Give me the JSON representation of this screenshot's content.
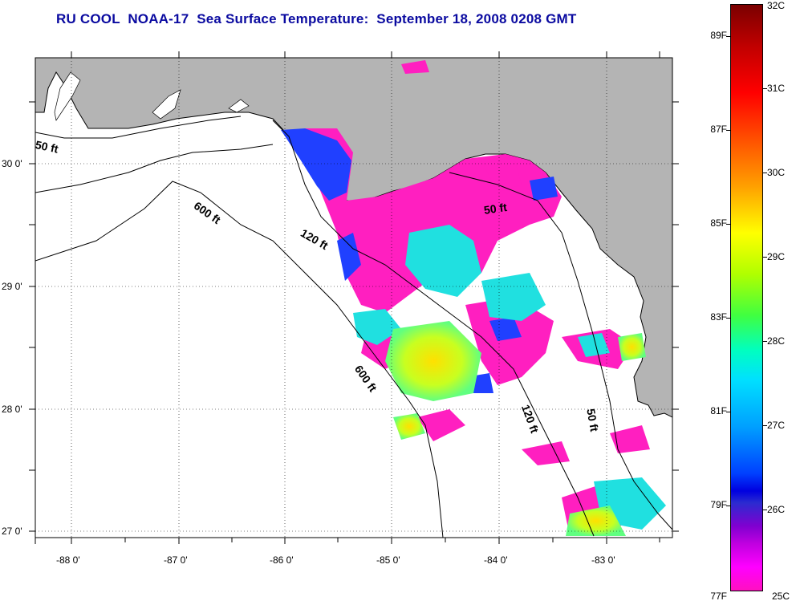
{
  "title": "RU COOL  NOAA-17  Sea Surface Temperature:  September 18, 2008 0208 GMT",
  "map": {
    "lat_labels": [
      "30 0'",
      "29 0'",
      "28 0'",
      "27 0'"
    ],
    "lon_labels": [
      "-88 0'",
      "-87 0'",
      "-86 0'",
      "-85 0'",
      "-84 0'",
      "-83 0'"
    ],
    "contour_labels": [
      "50 ft",
      "600 ft",
      "120 ft",
      "50 ft",
      "600 ft",
      "120 ft",
      "50 ft"
    ],
    "colors": {
      "land": "#b4b4b4",
      "no_data": "#ffffff"
    }
  },
  "colorbar": {
    "f_labels": [
      "89F",
      "87F",
      "85F",
      "83F",
      "81F",
      "79F",
      "77F"
    ],
    "c_labels": [
      "32C",
      "31C",
      "30C",
      "29C",
      "28C",
      "27C",
      "26C",
      "25C"
    ]
  }
}
